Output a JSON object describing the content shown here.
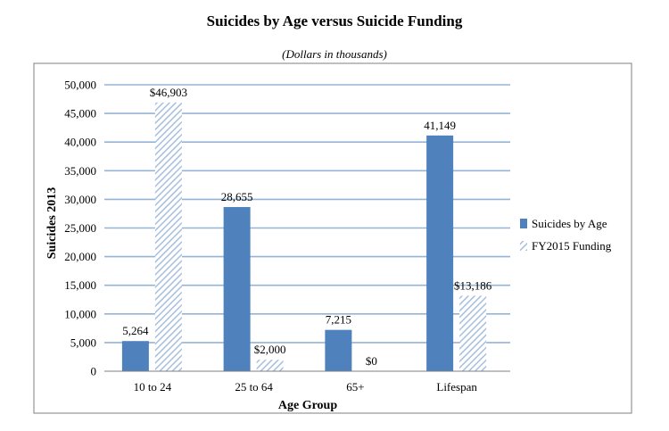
{
  "chart_data": {
    "type": "bar",
    "title": "Suicides by Age versus Suicide Funding",
    "subtitle": "(Dollars in thousands)",
    "xlabel": "Age Group",
    "ylabel": "Suicides 2013",
    "categories": [
      "10 to 24",
      "25 to 64",
      "65+",
      "Lifespan"
    ],
    "ylim": [
      0,
      50000
    ],
    "yticks": [
      "0",
      "5,000",
      "10,000",
      "15,000",
      "20,000",
      "25,000",
      "30,000",
      "35,000",
      "40,000",
      "45,000",
      "50,000"
    ],
    "ytick_values": [
      0,
      5000,
      10000,
      15000,
      20000,
      25000,
      30000,
      35000,
      40000,
      45000,
      50000
    ],
    "grid": true,
    "legend_position": "right",
    "series": [
      {
        "name": "Suicides by Age",
        "values": [
          5264,
          28655,
          7215,
          41149
        ],
        "labels": [
          "5,264",
          "28,655",
          "7,215",
          "41,149"
        ],
        "color": "#4f81bd",
        "pattern": "solid"
      },
      {
        "name": "FY2015 Funding",
        "values": [
          46903,
          2000,
          0,
          13186
        ],
        "labels": [
          "$46,903",
          "$2,000",
          "$0",
          "$13,186"
        ],
        "color": "#a7bfdc",
        "pattern": "diagonal-hatch"
      }
    ]
  }
}
